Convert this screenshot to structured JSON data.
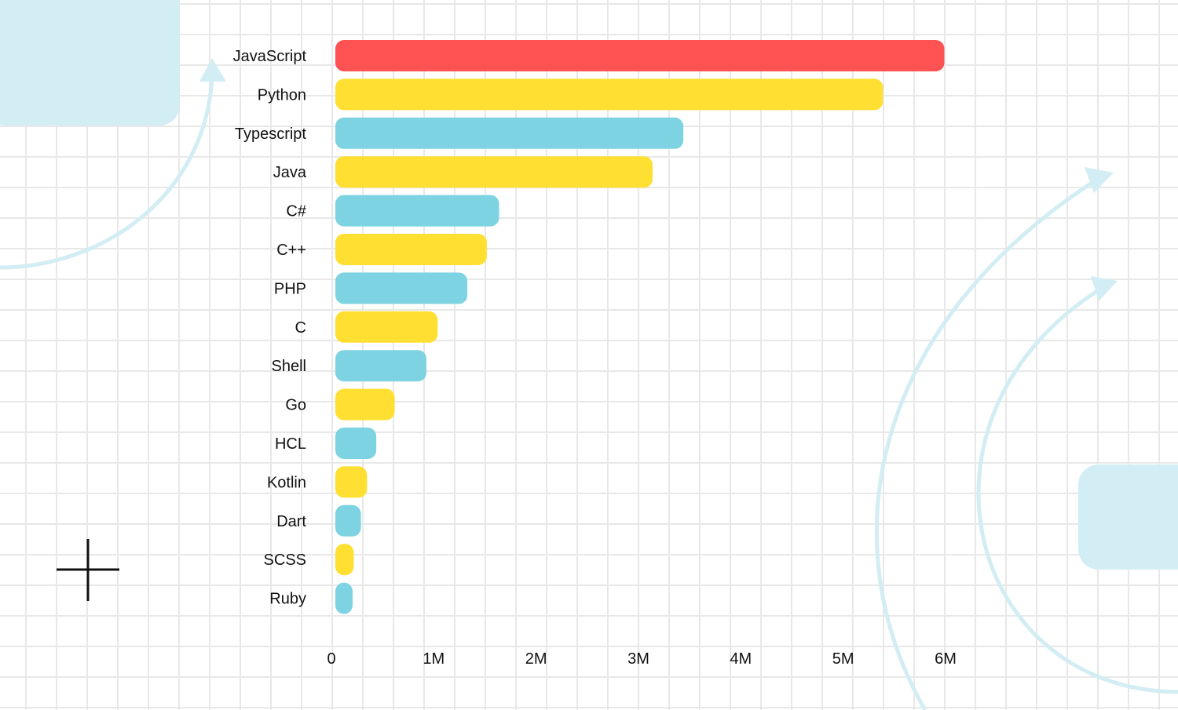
{
  "chart_data": {
    "type": "bar",
    "orientation": "horizontal",
    "categories": [
      "JavaScript",
      "Python",
      "Typescript",
      "Java",
      "C#",
      "C++",
      "PHP",
      "C",
      "Shell",
      "Go",
      "HCL",
      "Kotlin",
      "Dart",
      "SCSS",
      "Ruby"
    ],
    "values": [
      5.95,
      5.35,
      3.4,
      3.1,
      1.6,
      1.48,
      1.29,
      1.0,
      0.89,
      0.58,
      0.4,
      0.31,
      0.25,
      0.18,
      0.11
    ],
    "value_unit": "millions",
    "colors": [
      "#ff5252",
      "#ffdf32",
      "#7dd3e1",
      "#ffdf32",
      "#7dd3e1",
      "#ffdf32",
      "#7dd3e1",
      "#ffdf32",
      "#7dd3e1",
      "#ffdf32",
      "#7dd3e1",
      "#ffdf32",
      "#7dd3e1",
      "#ffdf32",
      "#7dd3e1"
    ],
    "x_ticks": [
      {
        "label": "0",
        "value": 0
      },
      {
        "label": "1M",
        "value": 1
      },
      {
        "label": "2M",
        "value": 2
      },
      {
        "label": "3M",
        "value": 3
      },
      {
        "label": "4M",
        "value": 4
      },
      {
        "label": "5M",
        "value": 5
      },
      {
        "label": "6M",
        "value": 6
      }
    ],
    "xlim": [
      0,
      6
    ],
    "title": "",
    "xlabel": "",
    "ylabel": "",
    "grid": true,
    "legend": "none"
  },
  "theme": {
    "grid_color": "#e8e8e8",
    "decor_color": "#d2edf3",
    "cross_color": "#111111"
  }
}
